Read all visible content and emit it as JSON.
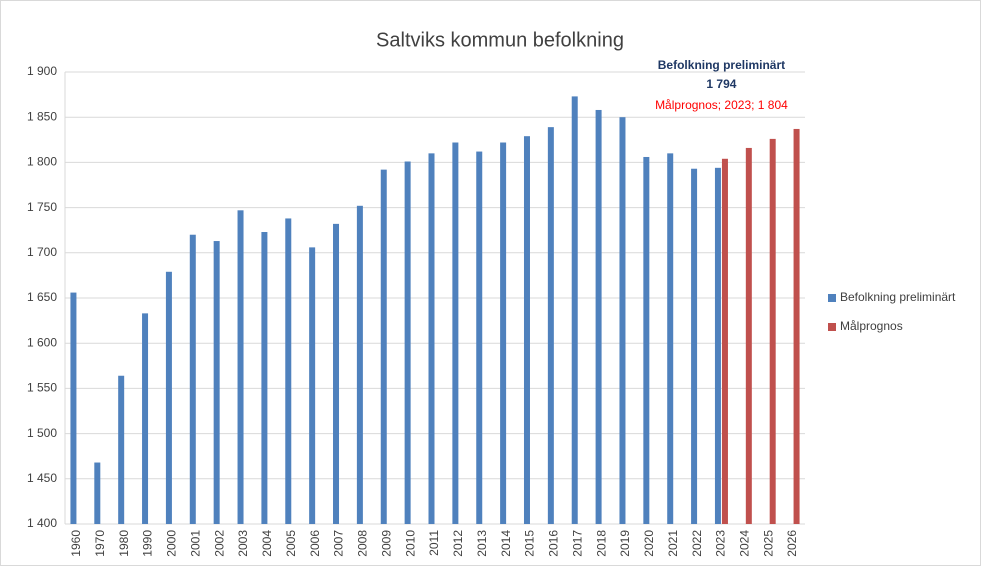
{
  "chart_data": {
    "type": "bar",
    "title": "Saltviks kommun befolkning",
    "categories": [
      "1960",
      "1970",
      "1980",
      "1990",
      "2000",
      "2001",
      "2002",
      "2003",
      "2004",
      "2005",
      "2006",
      "2007",
      "2008",
      "2009",
      "2010",
      "2011",
      "2012",
      "2013",
      "2014",
      "2015",
      "2016",
      "2017",
      "2018",
      "2019",
      "2020",
      "2021",
      "2022",
      "2023",
      "2024",
      "2025",
      "2026"
    ],
    "series": [
      {
        "name": "Befolkning preliminärt",
        "color": "#4f81bd",
        "values": [
          1656,
          1468,
          1564,
          1633,
          1679,
          1720,
          1713,
          1747,
          1723,
          1738,
          1706,
          1732,
          1752,
          1792,
          1801,
          1810,
          1822,
          1812,
          1822,
          1829,
          1839,
          1873,
          1858,
          1850,
          1806,
          1810,
          1793,
          1794,
          null,
          null,
          null
        ],
        "value_labels": [
          null,
          null,
          null,
          null,
          null,
          null,
          null,
          null,
          null,
          null,
          null,
          null,
          null,
          null,
          null,
          null,
          null,
          null,
          null,
          null,
          null,
          null,
          null,
          null,
          null,
          null,
          null,
          "1 794",
          null,
          null,
          null
        ]
      },
      {
        "name": "Målprognos",
        "color": "#c0504d",
        "values": [
          null,
          null,
          null,
          null,
          null,
          null,
          null,
          null,
          null,
          null,
          null,
          null,
          null,
          null,
          null,
          null,
          null,
          null,
          null,
          null,
          null,
          null,
          null,
          null,
          null,
          null,
          null,
          1804,
          1816,
          1826,
          1837
        ],
        "value_labels": [
          null,
          null,
          null,
          null,
          null,
          null,
          null,
          null,
          null,
          null,
          null,
          null,
          null,
          null,
          null,
          null,
          null,
          null,
          null,
          null,
          null,
          null,
          null,
          null,
          null,
          null,
          null,
          "Målprognos; 2023; 1 804",
          null,
          null,
          null
        ]
      }
    ],
    "ylim": [
      1400,
      1900
    ],
    "yticks": [
      {
        "value": 1400,
        "label": "1 400"
      },
      {
        "value": 1450,
        "label": "1 450"
      },
      {
        "value": 1500,
        "label": "1 500"
      },
      {
        "value": 1550,
        "label": "1 550"
      },
      {
        "value": 1600,
        "label": "1 600"
      },
      {
        "value": 1650,
        "label": "1 650"
      },
      {
        "value": 1700,
        "label": "1 700"
      },
      {
        "value": 1750,
        "label": "1 750"
      },
      {
        "value": 1800,
        "label": "1 800"
      },
      {
        "value": 1850,
        "label": "1 850"
      },
      {
        "value": 1900,
        "label": "1 900"
      }
    ],
    "grid": true,
    "legend": "right"
  }
}
